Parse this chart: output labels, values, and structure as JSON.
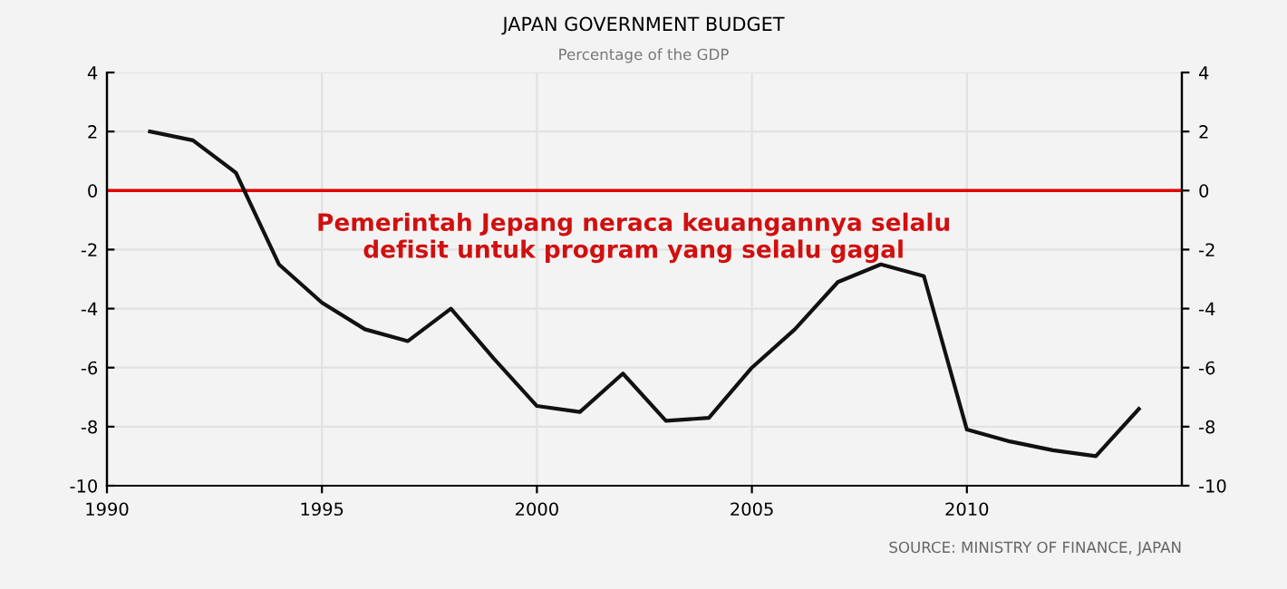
{
  "chart_data": {
    "type": "line",
    "title": "JAPAN GOVERNMENT BUDGET",
    "subtitle": "Percentage of the GDP",
    "x": [
      1991,
      1992,
      1993,
      1994,
      1995,
      1996,
      1997,
      1998,
      1999,
      2000,
      2001,
      2002,
      2003,
      2004,
      2005,
      2006,
      2007,
      2008,
      2009,
      2010,
      2011,
      2012,
      2013,
      2014
    ],
    "series": [
      {
        "color": "#111111",
        "values": [
          2.0,
          1.7,
          0.6,
          -2.5,
          -3.8,
          -4.7,
          -5.1,
          -4.0,
          -5.7,
          -7.3,
          -7.5,
          -6.2,
          -7.8,
          -7.7,
          -6.0,
          -4.7,
          -3.1,
          -2.5,
          -2.9,
          -8.1,
          -8.5,
          -8.8,
          -9.0,
          -7.4
        ]
      }
    ],
    "xlim": [
      1990,
      2015
    ],
    "xticks": [
      1990,
      1995,
      2000,
      2005,
      2010
    ],
    "ylim": [
      -10,
      4
    ],
    "yticks": [
      -10,
      -8,
      -6,
      -4,
      -2,
      0,
      2,
      4
    ],
    "y2lim": [
      -10,
      4
    ],
    "y2ticks": [
      -10,
      -8,
      -6,
      -4,
      -2,
      0,
      2,
      4
    ],
    "ref_lines": [
      {
        "axis": "y",
        "value": 0,
        "color": "#e00000"
      }
    ],
    "annotations": [
      "Pemerintah Jepang neraca keuangannya selalu\ndefisit untuk program yang selalu gagal",
      "SOURCE: MINISTRY OF FINANCE, JAPAN"
    ],
    "grid": true,
    "marker": "none",
    "line_style": "solid"
  }
}
